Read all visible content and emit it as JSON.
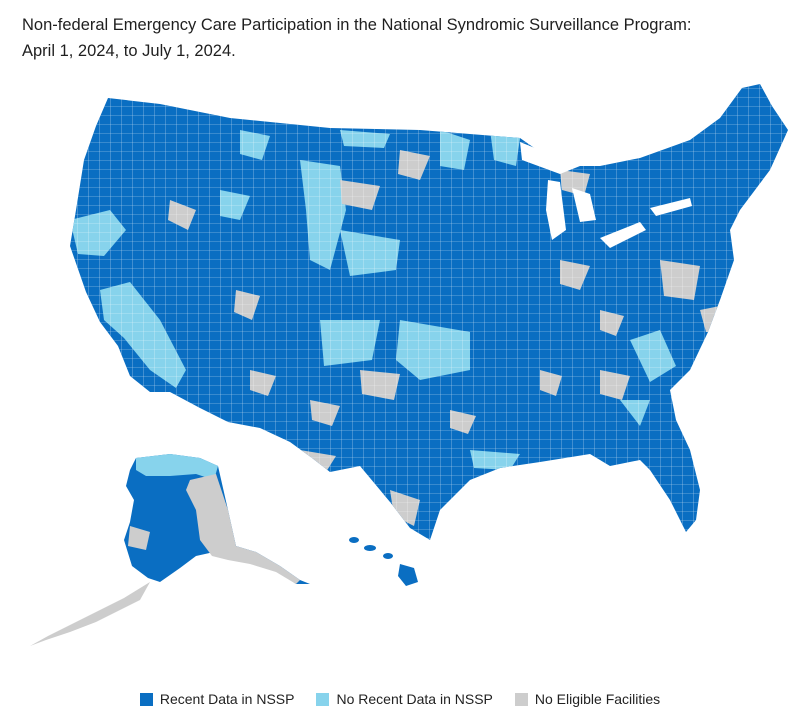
{
  "title": {
    "line1": "Non-federal Emergency Care Participation in the National Syndromic Surveillance Program:",
    "line2": "April 1, 2024, to July 1, 2024."
  },
  "colors": {
    "recent": "#0a6ec2",
    "no_recent": "#87d3ec",
    "no_eligible": "#cdcdcd",
    "border": "#ffffff"
  },
  "legend": [
    {
      "label": "Recent Data in NSSP",
      "color": "#0a6ec2"
    },
    {
      "label": "No Recent Data in NSSP",
      "color": "#87d3ec"
    },
    {
      "label": "No Eligible Facilities",
      "color": "#cdcdcd"
    }
  ]
}
